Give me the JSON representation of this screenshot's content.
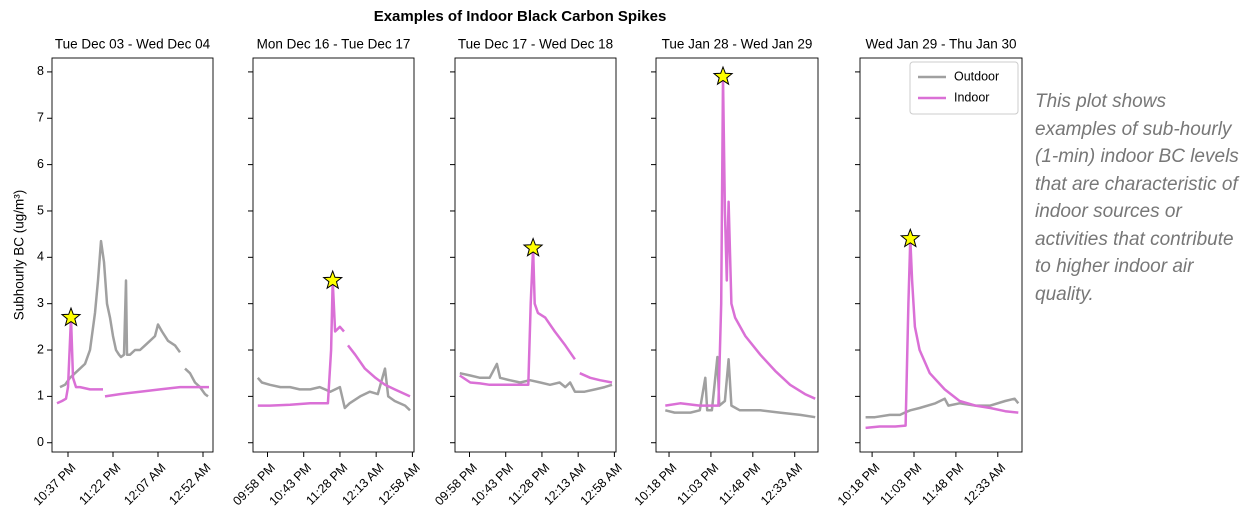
{
  "title": "Examples of Indoor Black Carbon Spikes",
  "note": "This plot shows examples of sub-hourly (1-min) indoor BC levels that are characteristic of indoor sources or activities that contribute to higher indoor air quality.",
  "chart_data": [
    {
      "type": "line",
      "title": "Tue Dec 03 - Wed Dec 04",
      "ylabel": "Subhourly BC (ug/m³)",
      "xlim": [
        1341,
        1502
      ],
      "xticks": [
        {
          "value": 1357,
          "label": "10:37 PM"
        },
        {
          "value": 1402,
          "label": "11:22 PM"
        },
        {
          "value": 1447,
          "label": "12:07 AM"
        },
        {
          "value": 1492,
          "label": "12:52 AM"
        }
      ],
      "ylim": [
        -0.2,
        8.3
      ],
      "yticks": [
        0,
        1,
        2,
        3,
        4,
        5,
        6,
        7,
        8
      ],
      "series": [
        {
          "color": "#a0a0a0",
          "x": [
            1349,
            1354,
            1359,
            1364,
            1369,
            1374,
            1379,
            1384,
            1387,
            1390,
            1393,
            1396,
            1399,
            1402,
            1405,
            1408,
            1410,
            1413,
            1415,
            1416,
            1419,
            1424,
            1429,
            1434,
            1439,
            1444,
            1447,
            1451,
            1457,
            1464,
            1469,
            1471,
            1474,
            1479,
            1484,
            1489,
            1494,
            1497
          ],
          "values": [
            1.2,
            1.25,
            1.4,
            1.5,
            1.6,
            1.7,
            2.0,
            2.8,
            3.5,
            4.35,
            3.9,
            3.0,
            2.7,
            2.3,
            2.0,
            1.9,
            1.85,
            1.9,
            3.5,
            1.9,
            1.9,
            2.0,
            2.0,
            2.1,
            2.2,
            2.3,
            2.55,
            2.4,
            2.2,
            2.1,
            1.95,
            null,
            1.6,
            1.5,
            1.3,
            1.2,
            1.05,
            1.0
          ]
        },
        {
          "color": "#da70d6",
          "x": [
            1346,
            1351,
            1355,
            1357,
            1360,
            1362,
            1365,
            1369,
            1379,
            1392,
            1393,
            1394,
            1409,
            1429,
            1449,
            1469,
            1498
          ],
          "values": [
            0.85,
            0.9,
            0.95,
            1.2,
            2.7,
            1.4,
            1.2,
            1.2,
            1.15,
            1.15,
            null,
            1.0,
            1.05,
            1.1,
            1.15,
            1.2,
            1.2
          ]
        }
      ]
    },
    {
      "type": "line",
      "title": "Mon Dec 16 - Tue Dec 17",
      "xlim": [
        1300,
        1500
      ],
      "xticks": [
        {
          "value": 1318,
          "label": "09:58 PM"
        },
        {
          "value": 1363,
          "label": "10:43 PM"
        },
        {
          "value": 1408,
          "label": "11:28 PM"
        },
        {
          "value": 1453,
          "label": "12:13 AM"
        },
        {
          "value": 1498,
          "label": "12:58 AM"
        }
      ],
      "ylim": [
        -0.2,
        8.3
      ],
      "yticks": [
        0,
        1,
        2,
        3,
        4,
        5,
        6,
        7,
        8
      ],
      "series": [
        {
          "color": "#a0a0a0",
          "x": [
            1306,
            1311,
            1321,
            1334,
            1346,
            1358,
            1371,
            1383,
            1396,
            1408,
            1414,
            1420,
            1433,
            1445,
            1455,
            1464,
            1468,
            1476,
            1489,
            1495
          ],
          "values": [
            1.4,
            1.3,
            1.25,
            1.2,
            1.2,
            1.15,
            1.15,
            1.2,
            1.1,
            1.2,
            0.75,
            0.85,
            1.0,
            1.1,
            1.05,
            1.6,
            1.0,
            0.9,
            0.8,
            0.7
          ]
        },
        {
          "color": "#da70d6",
          "x": [
            1306,
            1321,
            1346,
            1371,
            1393,
            1397,
            1399,
            1402,
            1408,
            1413,
            1415,
            1418,
            1427,
            1439,
            1452,
            1464,
            1476,
            1489,
            1495
          ],
          "values": [
            0.8,
            0.8,
            0.82,
            0.85,
            0.85,
            2.0,
            3.5,
            2.4,
            2.5,
            2.4,
            null,
            2.1,
            1.9,
            1.6,
            1.4,
            1.25,
            1.15,
            1.05,
            1.0
          ]
        }
      ]
    },
    {
      "type": "line",
      "title": "Tue Dec 17 - Wed Dec 18",
      "xlim": [
        1300,
        1500
      ],
      "xticks": [
        {
          "value": 1318,
          "label": "09:58 PM"
        },
        {
          "value": 1363,
          "label": "10:43 PM"
        },
        {
          "value": 1408,
          "label": "11:28 PM"
        },
        {
          "value": 1453,
          "label": "12:13 AM"
        },
        {
          "value": 1498,
          "label": "12:58 AM"
        }
      ],
      "ylim": [
        -0.2,
        8.3
      ],
      "yticks": [
        0,
        1,
        2,
        3,
        4,
        5,
        6,
        7,
        8
      ],
      "series": [
        {
          "color": "#a0a0a0",
          "x": [
            1306,
            1319,
            1331,
            1343,
            1352,
            1356,
            1368,
            1381,
            1393,
            1406,
            1418,
            1430,
            1437,
            1443,
            1449,
            1461,
            1474,
            1486,
            1495
          ],
          "values": [
            1.5,
            1.45,
            1.4,
            1.4,
            1.7,
            1.4,
            1.35,
            1.3,
            1.35,
            1.3,
            1.25,
            1.3,
            1.2,
            1.3,
            1.1,
            1.1,
            1.15,
            1.2,
            1.25
          ]
        },
        {
          "color": "#da70d6",
          "x": [
            1306,
            1319,
            1331,
            1343,
            1356,
            1368,
            1391,
            1394,
            1397,
            1399,
            1403,
            1412,
            1424,
            1437,
            1449,
            1453,
            1455,
            1468,
            1480,
            1495
          ],
          "values": [
            1.45,
            1.3,
            1.28,
            1.25,
            1.25,
            1.25,
            1.25,
            3.0,
            4.2,
            3.0,
            2.8,
            2.7,
            2.4,
            2.1,
            1.8,
            null,
            1.5,
            1.4,
            1.35,
            1.3
          ]
        }
      ]
    },
    {
      "type": "line",
      "title": "Tue Jan 28 - Wed Jan 29",
      "xlim": [
        1324,
        1498
      ],
      "xticks": [
        {
          "value": 1338,
          "label": "10:18 PM"
        },
        {
          "value": 1383,
          "label": "11:03 PM"
        },
        {
          "value": 1428,
          "label": "11:48 PM"
        },
        {
          "value": 1473,
          "label": "12:33 AM"
        }
      ],
      "ylim": [
        -0.2,
        8.3
      ],
      "yticks": [
        0,
        1,
        2,
        3,
        4,
        5,
        6,
        7,
        8
      ],
      "series": [
        {
          "color": "#a0a0a0",
          "x": [
            1334,
            1344,
            1361,
            1371,
            1377,
            1379,
            1384,
            1390,
            1392,
            1398,
            1402,
            1405,
            1414,
            1436,
            1457,
            1479,
            1495
          ],
          "values": [
            0.7,
            0.65,
            0.65,
            0.7,
            1.4,
            0.7,
            0.7,
            1.85,
            0.8,
            0.9,
            1.8,
            0.8,
            0.7,
            0.7,
            0.65,
            0.6,
            0.55
          ]
        },
        {
          "color": "#da70d6",
          "x": [
            1334,
            1350,
            1371,
            1391,
            1394,
            1396,
            1398,
            1400,
            1402,
            1405,
            1409,
            1420,
            1436,
            1452,
            1468,
            1484,
            1495
          ],
          "values": [
            0.8,
            0.85,
            0.8,
            0.8,
            3.0,
            7.9,
            5.0,
            3.5,
            5.2,
            3.0,
            2.7,
            2.3,
            1.9,
            1.55,
            1.25,
            1.05,
            0.95
          ]
        }
      ]
    },
    {
      "type": "line",
      "title": "Wed Jan 29 - Thu Jan 30",
      "legend": "upper right",
      "xlim": [
        1325,
        1499
      ],
      "xticks": [
        {
          "value": 1338,
          "label": "10:18 PM"
        },
        {
          "value": 1383,
          "label": "11:03 PM"
        },
        {
          "value": 1428,
          "label": "11:48 PM"
        },
        {
          "value": 1473,
          "label": "12:33 AM"
        }
      ],
      "ylim": [
        -0.2,
        8.3
      ],
      "yticks": [
        0,
        1,
        2,
        3,
        4,
        5,
        6,
        7,
        8
      ],
      "series": [
        {
          "name": "Outdoor",
          "color": "#a0a0a0",
          "x": [
            1331,
            1341,
            1357,
            1368,
            1373,
            1379,
            1389,
            1406,
            1416,
            1420,
            1432,
            1449,
            1465,
            1481,
            1491,
            1495
          ],
          "values": [
            0.55,
            0.55,
            0.6,
            0.6,
            0.65,
            0.7,
            0.75,
            0.85,
            0.95,
            0.8,
            0.85,
            0.8,
            0.8,
            0.9,
            0.95,
            0.85
          ]
        },
        {
          "name": "Indoor",
          "color": "#da70d6",
          "x": [
            1331,
            1346,
            1363,
            1374,
            1377,
            1379,
            1381,
            1384,
            1389,
            1400,
            1416,
            1432,
            1449,
            1465,
            1481,
            1495
          ],
          "values": [
            0.32,
            0.35,
            0.35,
            0.37,
            3.0,
            4.4,
            3.5,
            2.5,
            2.0,
            1.5,
            1.15,
            0.9,
            0.8,
            0.75,
            0.68,
            0.65
          ]
        }
      ]
    }
  ]
}
